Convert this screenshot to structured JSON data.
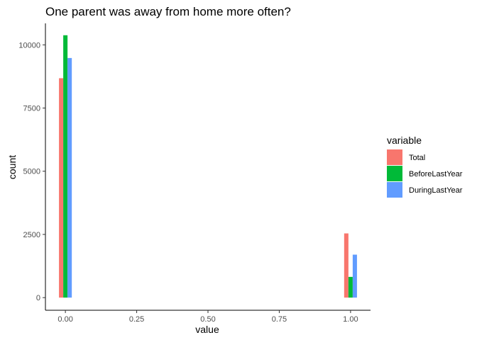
{
  "chart_data": {
    "type": "bar",
    "title": "One parent was away from home more often?",
    "xlabel": "value",
    "ylabel": "count",
    "x": [
      0,
      1
    ],
    "xlim": [
      -0.07,
      1.07
    ],
    "ylim": [
      -500,
      10850
    ],
    "xticks": [
      "0.00",
      "0.25",
      "0.50",
      "0.75",
      "1.00"
    ],
    "yticks": [
      "0",
      "2500",
      "5000",
      "7500",
      "10000"
    ],
    "grid": false,
    "legend": {
      "title": "variable",
      "position": "right"
    },
    "series": [
      {
        "name": "Total",
        "color": "#F8766D",
        "values": [
          8680,
          2540
        ]
      },
      {
        "name": "BeforeLastYear",
        "color": "#00BA38",
        "values": [
          10380,
          820
        ]
      },
      {
        "name": "DuringLastYear",
        "color": "#619CFF",
        "values": [
          9480,
          1700
        ]
      }
    ]
  }
}
